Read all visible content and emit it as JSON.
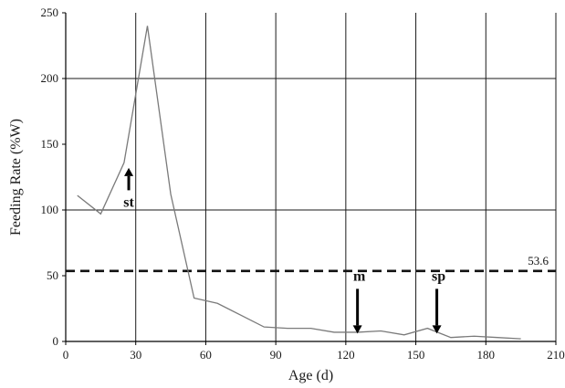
{
  "chart_data": {
    "type": "line",
    "title": "",
    "xlabel": "Age (d)",
    "ylabel": "Feeding Rate (%W)",
    "xlim": [
      0,
      210
    ],
    "ylim": [
      0,
      250
    ],
    "xticks": [
      0,
      30,
      60,
      90,
      120,
      150,
      180,
      210
    ],
    "yticks": [
      0,
      50,
      100,
      150,
      200,
      250
    ],
    "grid": "vertical lines at x ticks; horizontal lines at y = 100, 200",
    "series": [
      {
        "x": [
          5,
          15,
          25,
          35,
          45,
          55,
          65,
          75,
          85,
          95,
          105,
          115,
          125,
          135,
          145,
          155,
          165,
          175,
          185,
          195
        ],
        "y": [
          111,
          97,
          136,
          240,
          112,
          33,
          29,
          20,
          11,
          10,
          10,
          7,
          7,
          8,
          5,
          10,
          3,
          4,
          3,
          2
        ]
      }
    ],
    "reference_line": {
      "y": 53.6,
      "style": "dashed",
      "label": "53.6"
    },
    "annotations": [
      {
        "text": "st",
        "x": 27,
        "arrow": "up",
        "arrow_from": 115,
        "arrow_to": 132
      },
      {
        "text": "m",
        "x": 125,
        "arrow": "down",
        "arrow_from": 40,
        "arrow_to": 6
      },
      {
        "text": "sp",
        "x": 159,
        "arrow": "down",
        "arrow_from": 40,
        "arrow_to": 6
      }
    ],
    "colors": {
      "line": "#7a7a7a",
      "grid": "#1a1a1a",
      "reference": "#111111"
    }
  }
}
